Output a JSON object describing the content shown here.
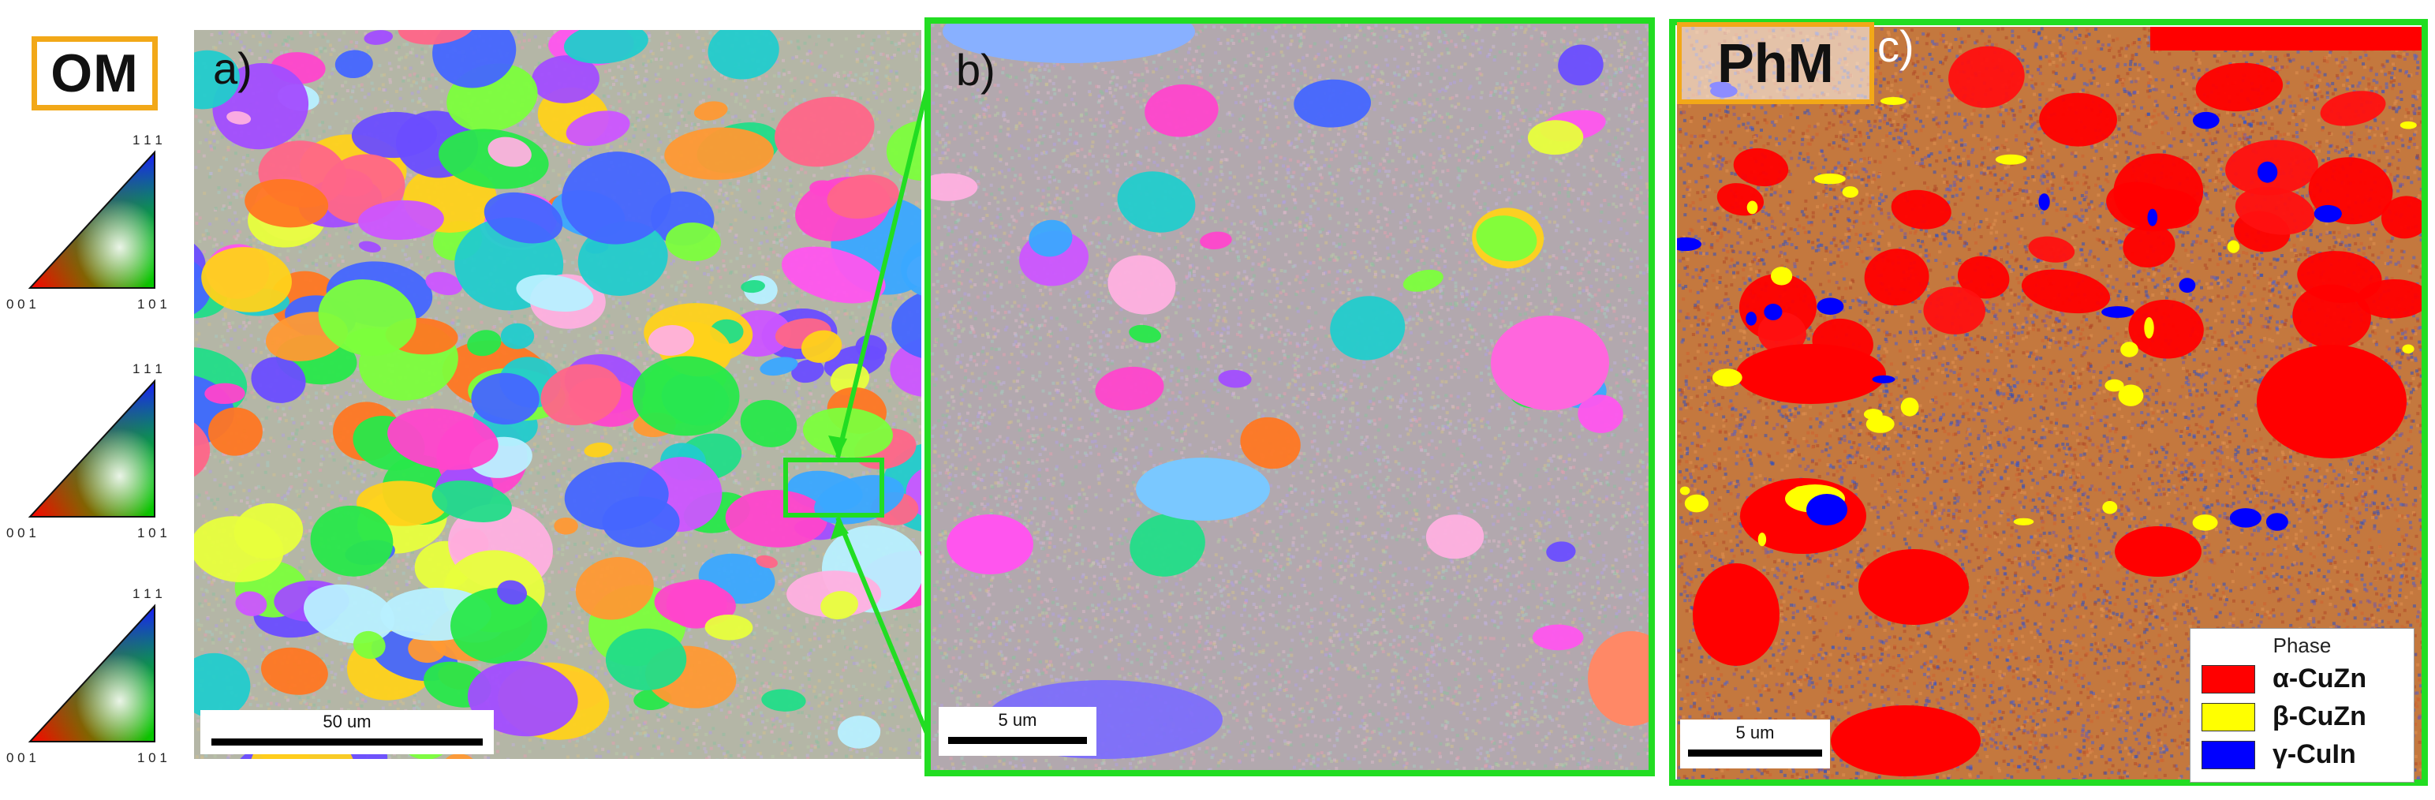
{
  "labels": {
    "om": "OM",
    "phm": "PhM",
    "panel_a": "a)",
    "panel_b": "b)",
    "panel_c": "c)"
  },
  "ipf_key": {
    "corners": {
      "top": "1 1 1",
      "bottom_left": "0 0 1",
      "bottom_right": "1 0 1"
    },
    "count": 3
  },
  "scalebars": {
    "a": "50 um",
    "b": "5 um",
    "c": "5 um"
  },
  "legend": {
    "title": "Phase",
    "items": [
      {
        "label": "α-CuZn",
        "color": "#ff0000"
      },
      {
        "label": "β-CuZn",
        "color": "#ffff00"
      },
      {
        "label": "γ-CuIn",
        "color": "#0000ff"
      }
    ]
  },
  "colors": {
    "frame_green": "#22dd22",
    "badge_orange": "#f2a818"
  }
}
